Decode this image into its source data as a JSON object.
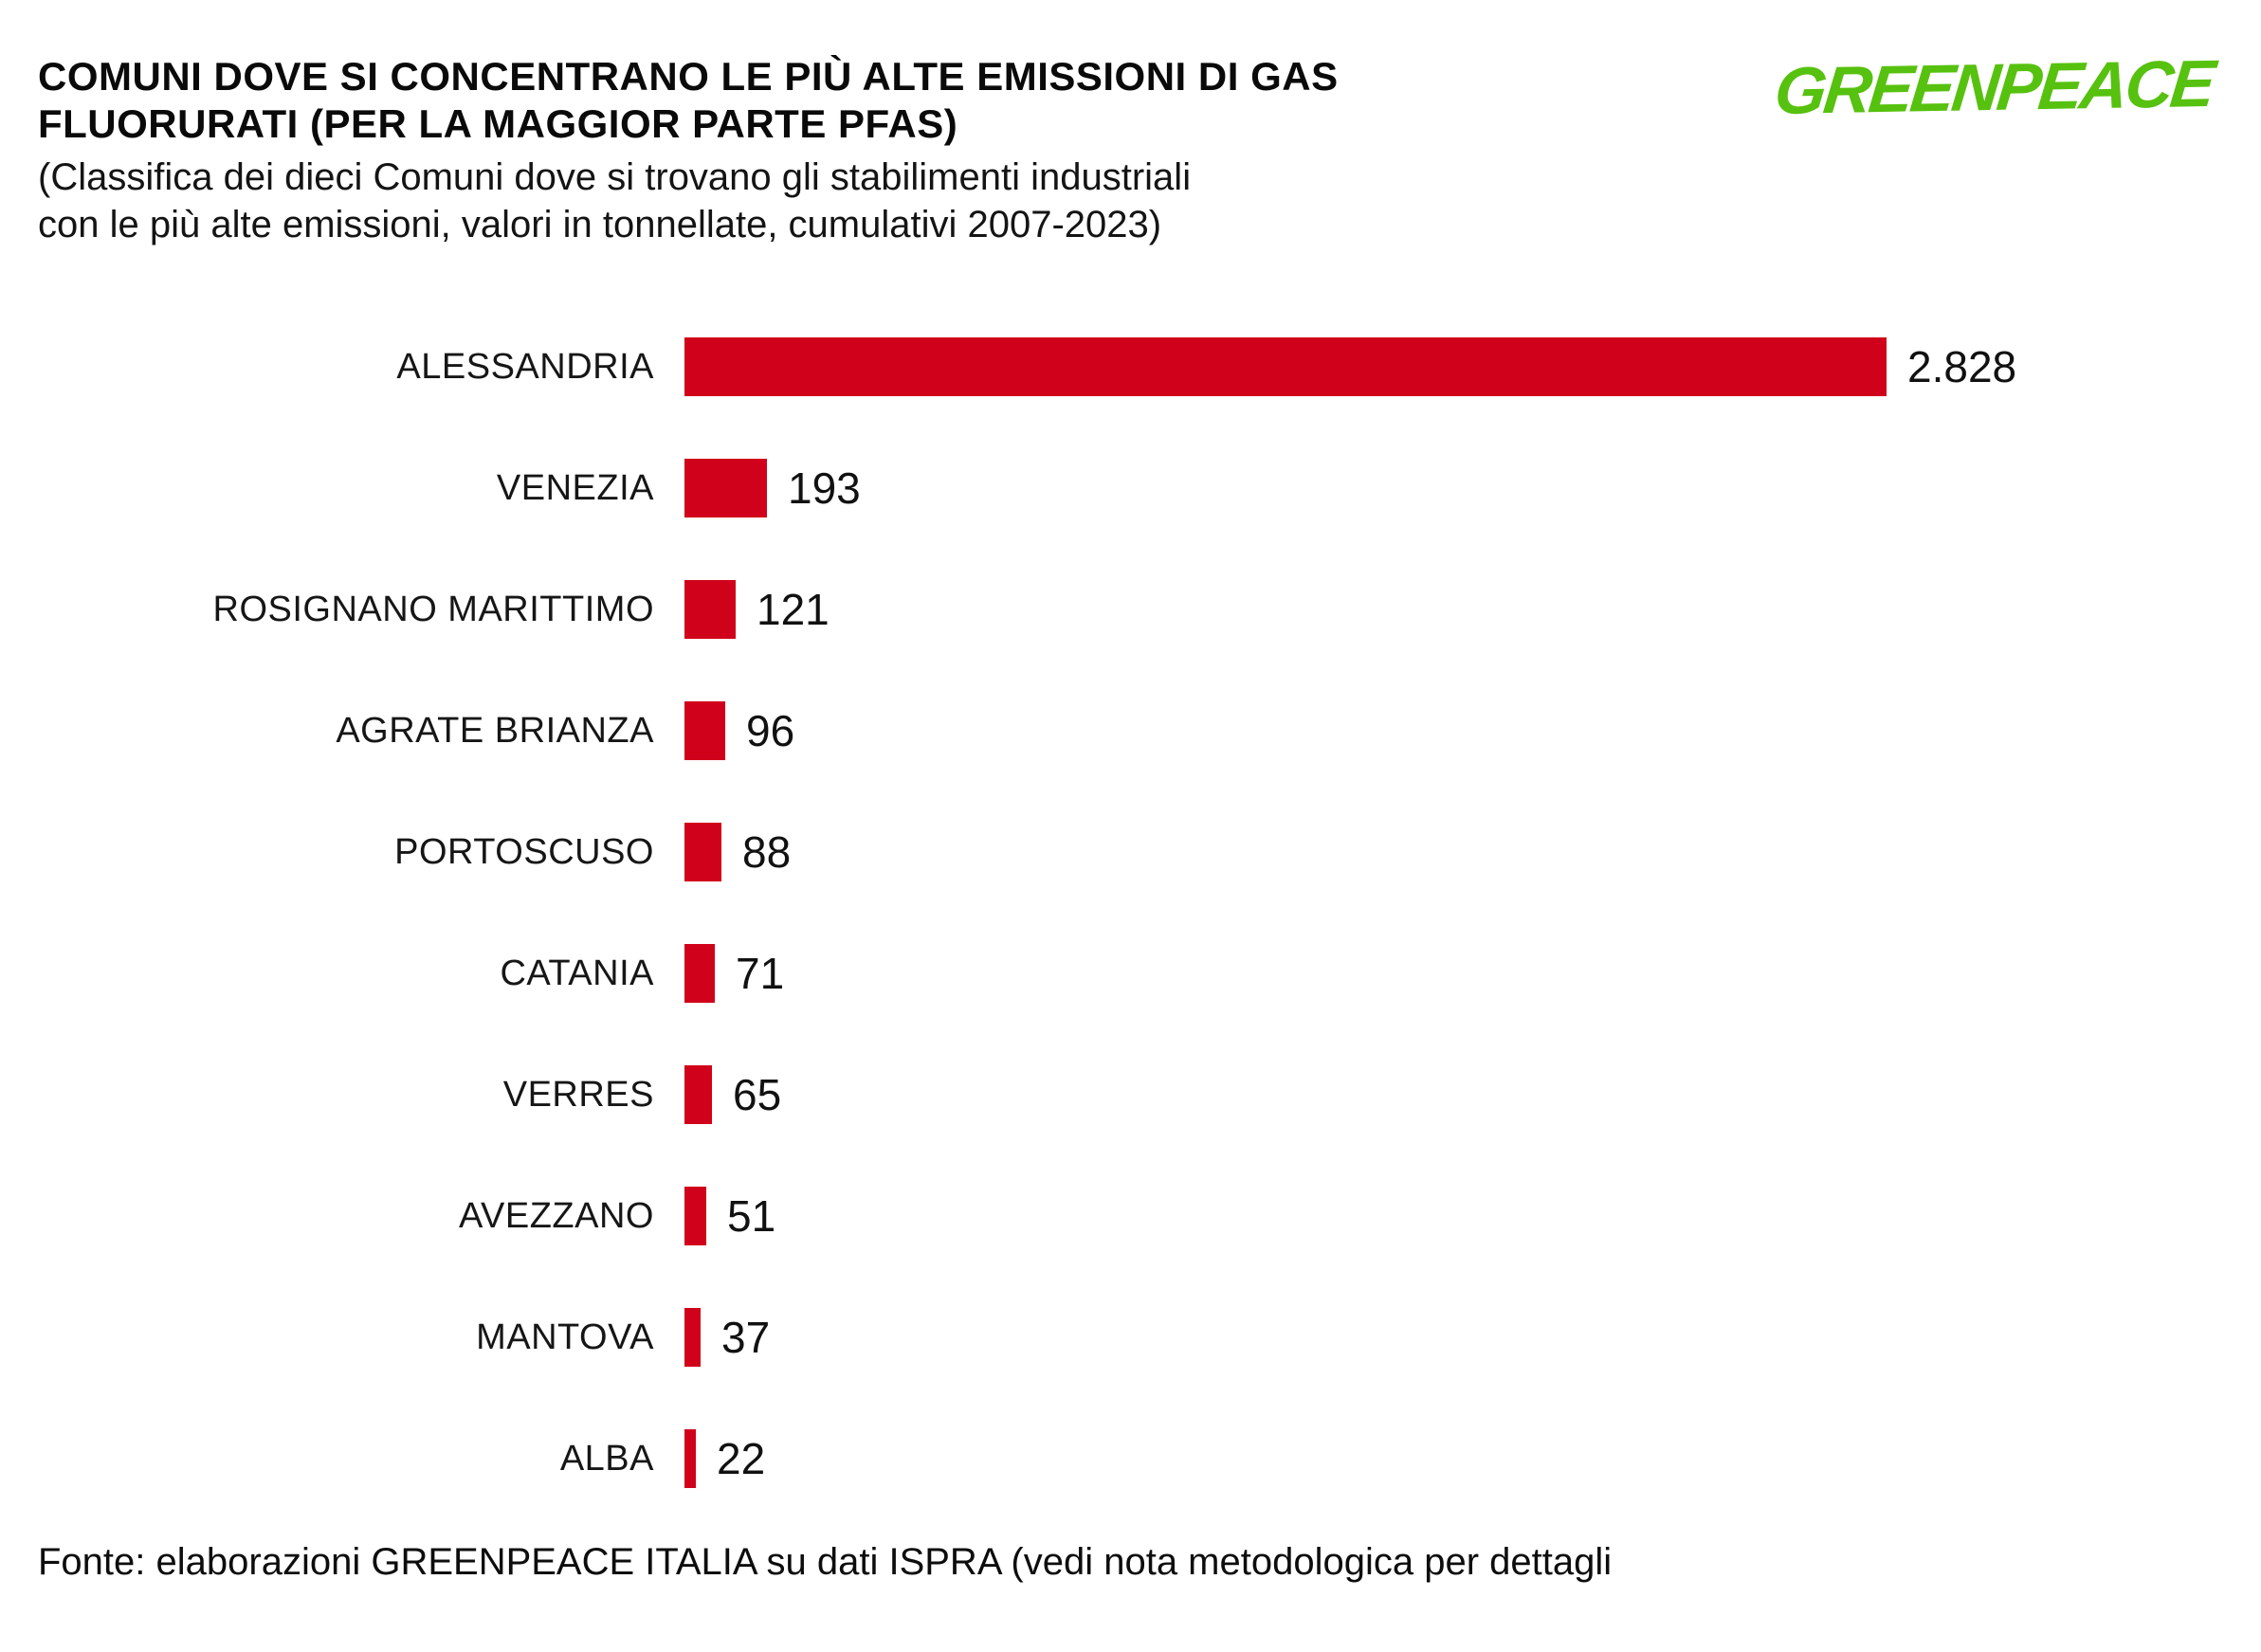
{
  "header": {
    "title_line1": "COMUNI DOVE SI CONCENTRANO LE PIÙ ALTE EMISSIONI DI GAS",
    "title_line2": "FLUORURATI (PER LA MAGGIOR PARTE PFAS)",
    "subtitle_line1": "(Classifica dei dieci Comuni dove si trovano gli stabilimenti industriali",
    "subtitle_line2": "con le più alte emissioni, valori in tonnellate, cumulativi 2007-2023)",
    "logo_text": "GREENPEACE",
    "logo_color": "#57c10f"
  },
  "footer": {
    "source": "Fonte: elaborazioni GREENPEACE ITALIA su dati ISPRA (vedi nota metodologica per dettagli"
  },
  "chart_data": {
    "type": "bar",
    "orientation": "horizontal",
    "title": "COMUNI DOVE SI CONCENTRANO LE PIÙ ALTE EMISSIONI DI GAS FLUORURATI (PER LA MAGGIOR PARTE PFAS)",
    "subtitle": "(Classifica dei dieci Comuni dove si trovano gli stabilimenti industriali con le più alte emissioni, valori in tonnellate, cumulativi 2007-2023)",
    "categories": [
      "ALESSANDRIA",
      "VENEZIA",
      "ROSIGNANO MARITTIMO",
      "AGRATE BRIANZA",
      "PORTOSCUSO",
      "CATANIA",
      "VERRES",
      "AVEZZANO",
      "MANTOVA",
      "ALBA"
    ],
    "values": [
      2828,
      193,
      121,
      96,
      88,
      71,
      65,
      51,
      37,
      22
    ],
    "value_labels": [
      "2.828",
      "193",
      "121",
      "96",
      "88",
      "71",
      "65",
      "51",
      "37",
      "22"
    ],
    "unit": "tonnellate",
    "xlabel": "",
    "ylabel": "",
    "xlim": [
      0,
      2828
    ],
    "grid": false,
    "legend": false,
    "bar_color": "#d0021b",
    "value_label_position": "right-of-bar"
  }
}
